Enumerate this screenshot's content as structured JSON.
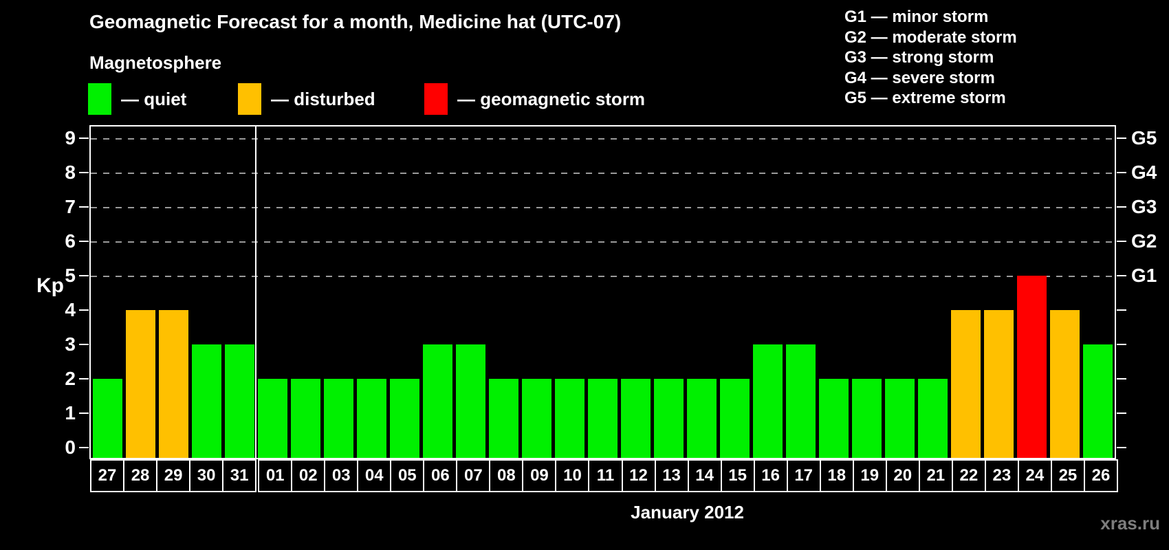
{
  "header": {
    "title": "Geomagnetic Forecast for a month, Medicine hat (UTC-07)"
  },
  "magnetosphere_legend": {
    "heading": "Magnetosphere",
    "items": [
      {
        "name": "quiet",
        "label": "— quiet",
        "color": "#00f000"
      },
      {
        "name": "disturbed",
        "label": "— disturbed",
        "color": "#ffc000"
      },
      {
        "name": "geomagnetic-storm",
        "label": "— geomagnetic storm",
        "color": "#ff0000"
      }
    ]
  },
  "storm_legend": {
    "lines": [
      "G1 — minor storm",
      "G2 — moderate storm",
      "G3 — strong storm",
      "G4 — severe storm",
      "G5 — extreme storm"
    ]
  },
  "watermark": "xras.ru",
  "chart_data": {
    "type": "bar",
    "title": "Geomagnetic Forecast for a month, Medicine hat (UTC-07)",
    "xlabel": "January 2012",
    "ylabel": "Kp",
    "ylim": [
      0,
      9
    ],
    "yticks": [
      0,
      1,
      2,
      3,
      4,
      5,
      6,
      7,
      8,
      9
    ],
    "grid": "horizontal dashed gray lines at Kp 5-9",
    "legend_position": "top-left",
    "right_axis": [
      {
        "label": "G1",
        "kp": 5
      },
      {
        "label": "G2",
        "kp": 6
      },
      {
        "label": "G3",
        "kp": 7
      },
      {
        "label": "G4",
        "kp": 8
      },
      {
        "label": "G5",
        "kp": 9
      }
    ],
    "gridlines_at_kp": [
      5,
      6,
      7,
      8,
      9
    ],
    "categories": [
      "27",
      "28",
      "29",
      "30",
      "31",
      "01",
      "02",
      "03",
      "04",
      "05",
      "06",
      "07",
      "08",
      "09",
      "10",
      "11",
      "12",
      "13",
      "14",
      "15",
      "16",
      "17",
      "18",
      "19",
      "20",
      "21",
      "22",
      "23",
      "24",
      "25",
      "26"
    ],
    "values": [
      2,
      4,
      4,
      3,
      3,
      2,
      2,
      2,
      2,
      2,
      3,
      3,
      2,
      2,
      2,
      2,
      2,
      2,
      2,
      2,
      3,
      3,
      2,
      2,
      2,
      2,
      4,
      4,
      5,
      4,
      3
    ],
    "month_boundary_after_index": 4,
    "color_rules": {
      "quiet_kp_0_to_3": "#00f000",
      "disturbed_kp_4": "#ffc000",
      "storm_kp_5_plus": "#ff0000"
    }
  }
}
